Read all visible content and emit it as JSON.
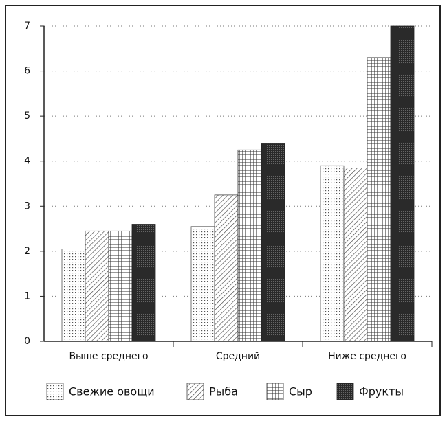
{
  "chart_data": {
    "type": "bar",
    "categories": [
      "Выше среднего",
      "Средний",
      "Ниже среднего"
    ],
    "series": [
      {
        "name": "Свежие овощи",
        "color": "#555555",
        "pattern": "dots",
        "values": [
          2.05,
          2.55,
          3.9
        ]
      },
      {
        "name": "Рыба",
        "color": "#444444",
        "pattern": "hatch",
        "values": [
          2.45,
          3.25,
          3.85
        ]
      },
      {
        "name": "Сыр",
        "color": "#333333",
        "pattern": "grid",
        "values": [
          2.45,
          4.25,
          6.3
        ]
      },
      {
        "name": "Фрукты",
        "color": "#222222",
        "pattern": "dark",
        "values": [
          2.6,
          4.4,
          7.0
        ]
      }
    ],
    "ylim": [
      0,
      7
    ],
    "yticks": [
      0,
      1,
      2,
      3,
      4,
      5,
      6,
      7
    ],
    "grid": true,
    "legend": "bottom"
  }
}
